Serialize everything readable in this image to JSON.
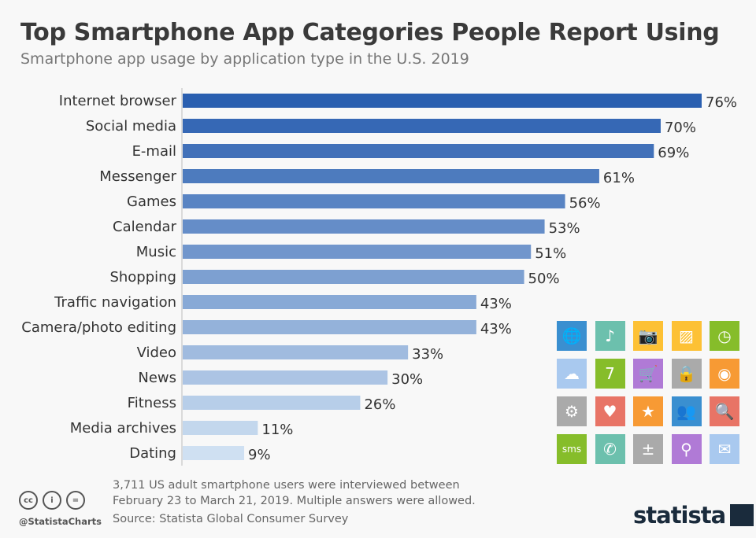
{
  "title": "Top Smartphone App Categories People Report Using",
  "subtitle": "Smartphone app usage by application type in the U.S. 2019",
  "chart_data": {
    "type": "bar",
    "orientation": "horizontal",
    "categories": [
      "Internet browser",
      "Social media",
      "E-mail",
      "Messenger",
      "Games",
      "Calendar",
      "Music",
      "Shopping",
      "Traffic navigation",
      "Camera/photo editing",
      "Video",
      "News",
      "Fitness",
      "Media archives",
      "Dating"
    ],
    "values": [
      76,
      70,
      69,
      61,
      56,
      53,
      51,
      50,
      43,
      43,
      33,
      30,
      26,
      11,
      9
    ],
    "unit": "%",
    "xlim": [
      0,
      76
    ],
    "grid": false,
    "colors": {
      "start": "#2a5fb0",
      "end": "#cfe0f2"
    }
  },
  "icons": [
    {
      "name": "globe-icon",
      "color": "#3a8fd0",
      "glyph": "🌐"
    },
    {
      "name": "music-note-icon",
      "color": "#6cc0ad",
      "glyph": "♪"
    },
    {
      "name": "camera-icon",
      "color": "#fdc135",
      "glyph": "📷"
    },
    {
      "name": "image-icon",
      "color": "#fdc135",
      "glyph": "▨"
    },
    {
      "name": "clock-icon",
      "color": "#86bd2a",
      "glyph": "◷"
    },
    {
      "name": "cloud-icon",
      "color": "#a9c9ef",
      "glyph": "☁"
    },
    {
      "name": "calendar-icon",
      "color": "#86bd2a",
      "glyph": "7"
    },
    {
      "name": "shopping-cart-icon",
      "color": "#b07ad6",
      "glyph": "🛒"
    },
    {
      "name": "lock-icon",
      "color": "#aaaaaa",
      "glyph": "🔒"
    },
    {
      "name": "webcam-icon",
      "color": "#f79a34",
      "glyph": "◉"
    },
    {
      "name": "settings-icon",
      "color": "#aaaaaa",
      "glyph": "⚙"
    },
    {
      "name": "heart-icon",
      "color": "#e87466",
      "glyph": "♥"
    },
    {
      "name": "star-icon",
      "color": "#f79a34",
      "glyph": "★"
    },
    {
      "name": "people-icon",
      "color": "#3a8fd0",
      "glyph": "👥"
    },
    {
      "name": "search-icon",
      "color": "#e87466",
      "glyph": "🔍"
    },
    {
      "name": "sms-icon",
      "color": "#86bd2a",
      "glyph": "sms"
    },
    {
      "name": "phone-chat-icon",
      "color": "#6cc0ad",
      "glyph": "✆"
    },
    {
      "name": "calculator-icon",
      "color": "#aaaaaa",
      "glyph": "±"
    },
    {
      "name": "location-pin-icon",
      "color": "#b07ad6",
      "glyph": "⚲"
    },
    {
      "name": "mail-icon",
      "color": "#a9c9ef",
      "glyph": "✉"
    }
  ],
  "footer": {
    "note_line1": "3,711 US adult smartphone users were interviewed between",
    "note_line2": "February 23 to March 21, 2019. Multiple answers were allowed.",
    "source": "Source: Statista Global Consumer Survey",
    "handle": "@StatistaCharts",
    "logo": "statista"
  }
}
